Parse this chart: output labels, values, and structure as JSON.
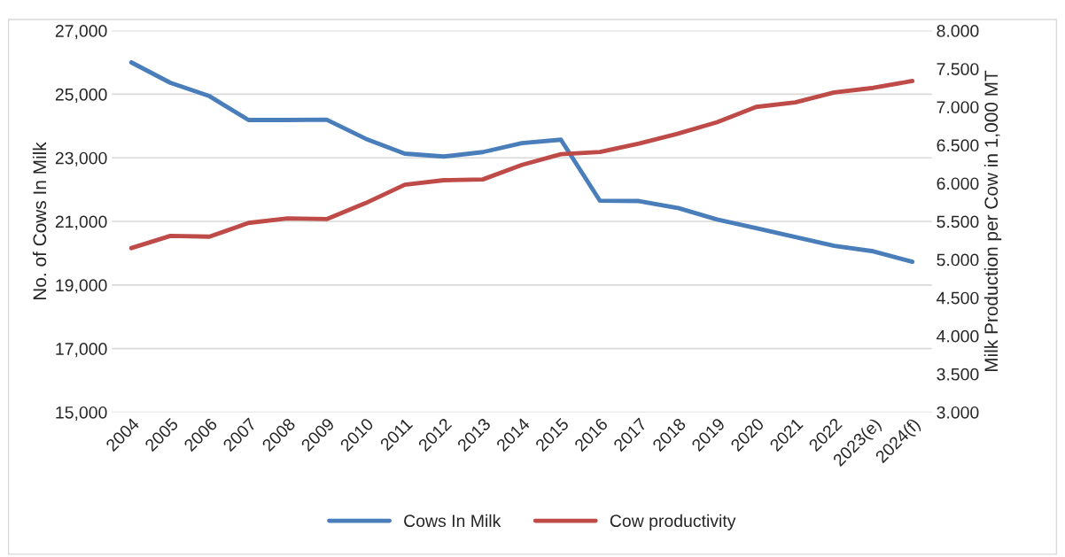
{
  "chart_data": {
    "type": "line",
    "categories": [
      "2004",
      "2005",
      "2006",
      "2007",
      "2008",
      "2009",
      "2010",
      "2011",
      "2012",
      "2013",
      "2014",
      "2015",
      "2016",
      "2017",
      "2018",
      "2019",
      "2020",
      "2021",
      "2022",
      "2023(e)",
      "2024(f)"
    ],
    "ylabel": "No. of Cows In Milk",
    "y2label": "Milk Production per Cow in 1,000 MT",
    "series": [
      {
        "name": "Cows In Milk",
        "color": "#4a7ebb",
        "values": [
          26000,
          25360,
          24940,
          24190,
          24190,
          24200,
          23600,
          23130,
          23040,
          23180,
          23460,
          23570,
          21650,
          21640,
          21420,
          21060,
          20790,
          20510,
          20230,
          20060,
          19730
        ]
      },
      {
        "name": "Cow productivity",
        "color": "#be4b48",
        "axis": "y2",
        "values": [
          5.15,
          5.31,
          5.3,
          5.48,
          5.54,
          5.53,
          5.74,
          5.98,
          6.04,
          6.05,
          6.24,
          6.38,
          6.41,
          6.52,
          6.65,
          6.8,
          7.0,
          7.06,
          7.19,
          7.25,
          7.34
        ]
      }
    ],
    "ylim": [
      15000,
      27000
    ],
    "yticks": [
      {
        "value": 15000,
        "label": "15,000"
      },
      {
        "value": 17000,
        "label": "17,000"
      },
      {
        "value": 19000,
        "label": "19,000"
      },
      {
        "value": 21000,
        "label": "21,000"
      },
      {
        "value": 23000,
        "label": "23,000"
      },
      {
        "value": 25000,
        "label": "25,000"
      },
      {
        "value": 27000,
        "label": "27,000"
      }
    ],
    "y2lim": [
      3,
      8
    ],
    "y2ticks": [
      {
        "value": 3,
        "label": "3.000"
      },
      {
        "value": 3.5,
        "label": "3.500"
      },
      {
        "value": 4,
        "label": "4.000"
      },
      {
        "value": 4.5,
        "label": "4.500"
      },
      {
        "value": 5,
        "label": "5.000"
      },
      {
        "value": 5.5,
        "label": "5.500"
      },
      {
        "value": 6,
        "label": "6.000"
      },
      {
        "value": 6.5,
        "label": "6.500"
      },
      {
        "value": 7,
        "label": "7.000"
      },
      {
        "value": 7.5,
        "label": "7.500"
      },
      {
        "value": 8,
        "label": "8.000"
      }
    ],
    "grid": "y",
    "legend": "bottom",
    "marker": "none",
    "line_style": "solid"
  }
}
